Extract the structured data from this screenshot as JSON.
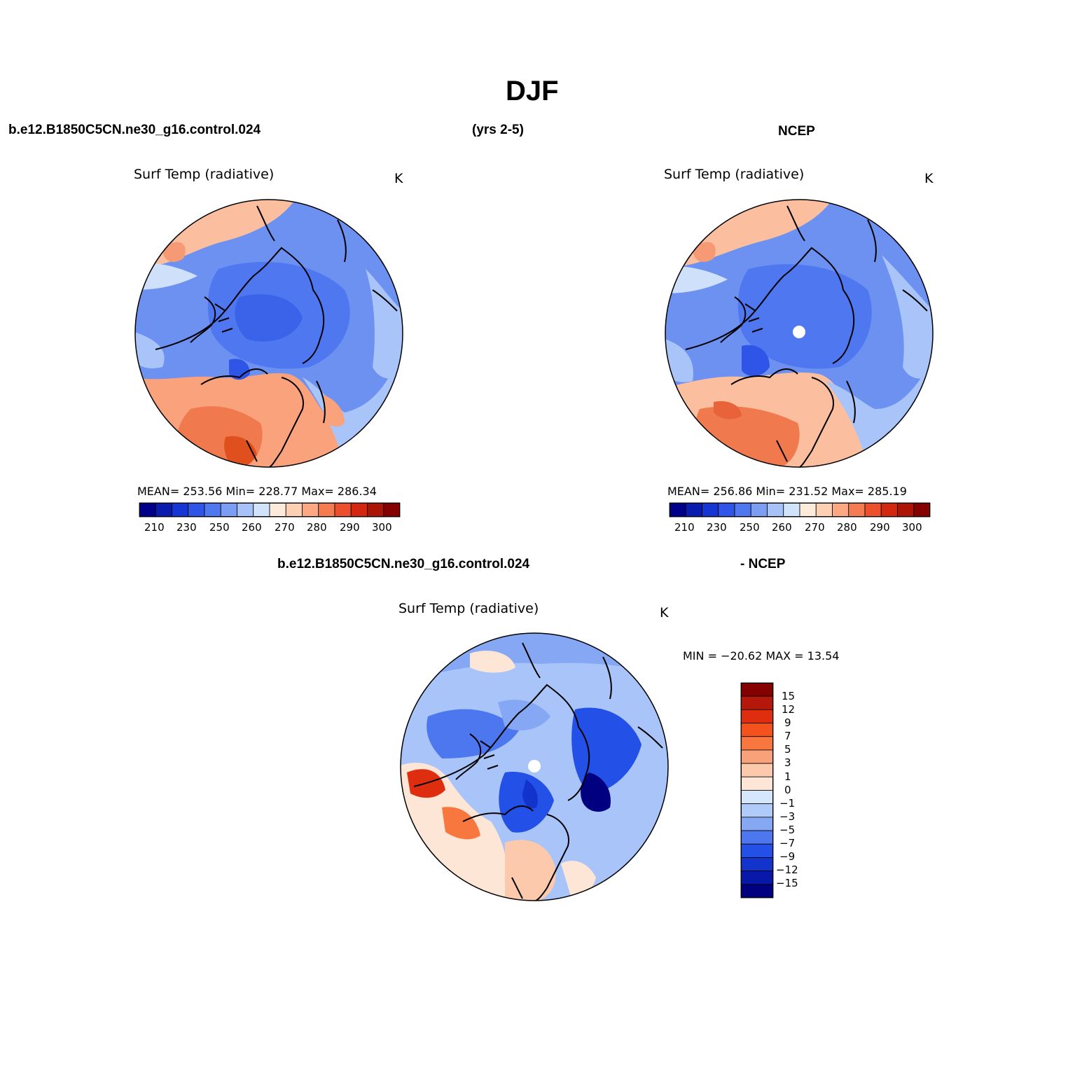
{
  "title": "DJF",
  "header": {
    "case_name": "b.e12.B1850C5CN.ne30_g16.control.024",
    "years": "(yrs 2-5)",
    "obs_name": "NCEP"
  },
  "diff_header": {
    "case_name": "b.e12.B1850C5CN.ne30_g16.control.024",
    "obs_label": "- NCEP"
  },
  "panels": {
    "model": {
      "variable": "Surf Temp (radiative)",
      "units": "K",
      "stats": "MEAN= 253.56   Min= 228.77   Max= 286.34"
    },
    "obs": {
      "variable": "Surf Temp (radiative)",
      "units": "K",
      "stats": "MEAN= 256.86   Min= 231.52   Max= 285.19"
    },
    "diff": {
      "variable": "Surf Temp (radiative)",
      "units": "K",
      "stats": "MIN = −20.62 MAX =   13.54"
    }
  },
  "abs_colorbar": {
    "colors": [
      "#00008b",
      "#0a1cae",
      "#1536d3",
      "#2f55e8",
      "#4f78f0",
      "#7b9ef4",
      "#a7c2f8",
      "#d1e3fb",
      "#feeadb",
      "#fdcfb3",
      "#fca882",
      "#f57c52",
      "#ed4e2c",
      "#d4270f",
      "#ac1506",
      "#850000"
    ],
    "labels": [
      "210",
      "230",
      "250",
      "260",
      "270",
      "280",
      "290",
      "300"
    ]
  },
  "diff_colorbar": {
    "colors": [
      "#850000",
      "#b5170a",
      "#df2e0f",
      "#f5511c",
      "#f7773f",
      "#f9a178",
      "#fcc9ac",
      "#fee6d6",
      "#d6e6fb",
      "#b0cbf8",
      "#86a8f4",
      "#4d77ee",
      "#2350e6",
      "#1233cc",
      "#0818a8",
      "#000080"
    ],
    "labels": [
      "15",
      "12",
      "9",
      "7",
      "5",
      "3",
      "1",
      "0",
      "−1",
      "−3",
      "−5",
      "−7",
      "−9",
      "−12",
      "−15"
    ]
  },
  "chart_data": {
    "type": "heatmap",
    "title": "DJF",
    "panels": [
      {
        "name": "b.e12.B1850C5CN.ne30_g16.control.024 (yrs 2-5)",
        "variable": "Surf Temp (radiative)",
        "units": "K",
        "mean": 253.56,
        "min": 228.77,
        "max": 286.34
      },
      {
        "name": "NCEP",
        "variable": "Surf Temp (radiative)",
        "units": "K",
        "mean": 256.86,
        "min": 231.52,
        "max": 285.19
      },
      {
        "name": "b.e12.B1850C5CN.ne30_g16.control.024 - NCEP",
        "variable": "Surf Temp (radiative)",
        "units": "K",
        "min": -20.62,
        "max": 13.54
      }
    ],
    "abs_contour_levels": [
      210,
      230,
      250,
      260,
      270,
      280,
      290,
      300
    ],
    "diff_contour_levels": [
      15,
      12,
      9,
      7,
      5,
      3,
      1,
      0,
      -1,
      -3,
      -5,
      -7,
      -9,
      -12,
      -15
    ]
  }
}
